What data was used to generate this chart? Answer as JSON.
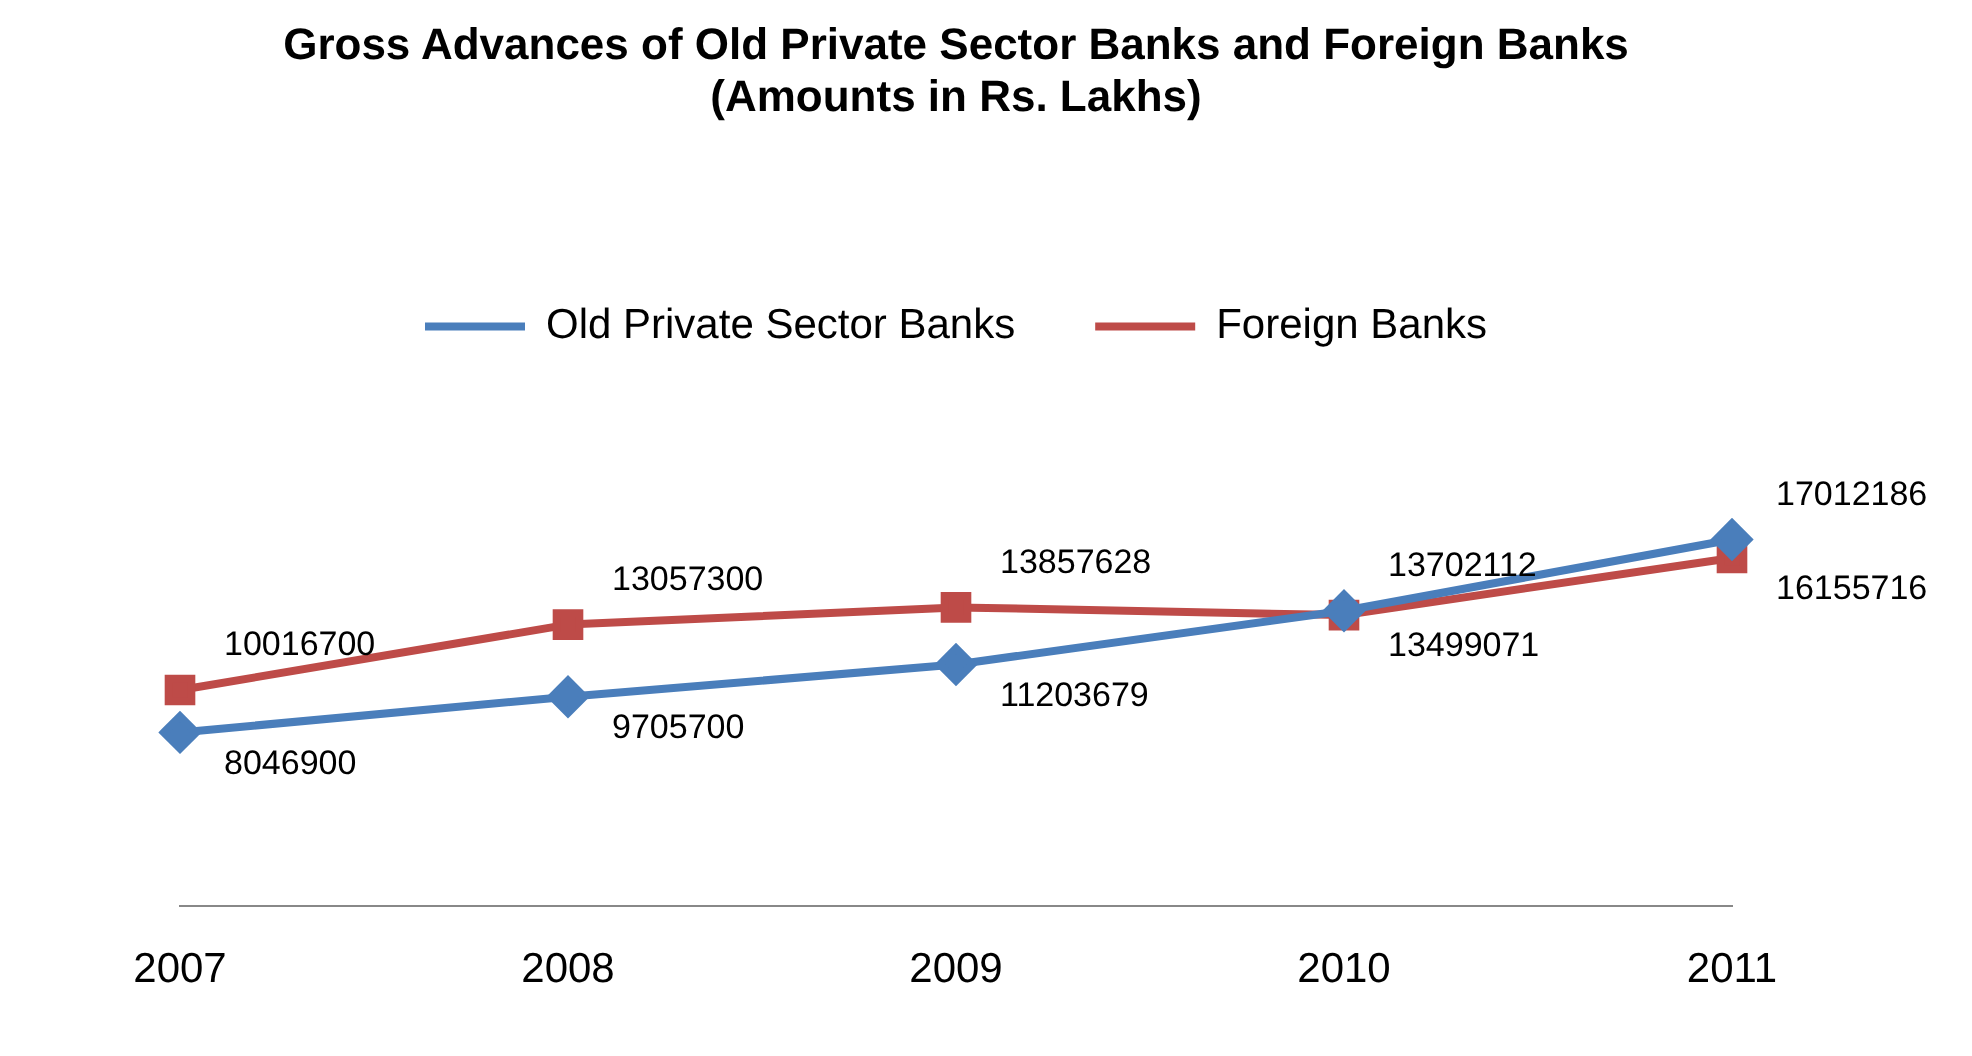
{
  "chart_data": {
    "type": "line",
    "title": "Gross Advances of Old Private Sector Banks and Foreign Banks\n(Amounts in Rs. Lakhs)",
    "categories": [
      "2007",
      "2008",
      "2009",
      "2010",
      "2011"
    ],
    "series": [
      {
        "name": "Old Private Sector Banks",
        "color": "#4a7ebb",
        "marker": "diamond",
        "values": [
          8046900,
          9705700,
          11203679,
          13702112,
          17012186
        ]
      },
      {
        "name": "Foreign Banks",
        "color": "#be4b48",
        "marker": "square",
        "values": [
          10016700,
          13057300,
          13857628,
          13499071,
          16155716
        ]
      }
    ],
    "data_labels": true,
    "legend": "top",
    "grid": false
  }
}
